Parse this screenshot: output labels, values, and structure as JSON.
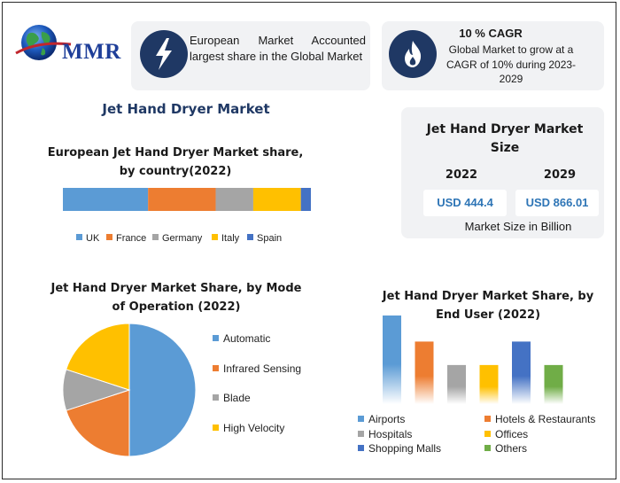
{
  "brand": {
    "name": "MMR"
  },
  "callouts": {
    "european": {
      "text": "European Market Accounted largest share in the Global Market",
      "icon": "lightning-icon"
    },
    "cagr": {
      "title": "10 % CAGR",
      "text": "Global Market to grow at a CAGR of 10% during 2023-2029",
      "icon": "flame-icon"
    }
  },
  "main_title": "Jet Hand Dryer Market",
  "market_size": {
    "title": "Jet Hand Dryer Market Size",
    "years": [
      "2022",
      "2029"
    ],
    "values": [
      "USD 444.4",
      "USD 866.01"
    ],
    "unit_note": "Market Size in Billion"
  },
  "colors": {
    "blue": "#5b9bd5",
    "orange": "#ed7d31",
    "gray": "#a5a5a5",
    "yellow": "#ffc000",
    "darkblue": "#4472c4",
    "green": "#70ad47",
    "navy": "#1f3864"
  },
  "chart_data": [
    {
      "id": "european",
      "type": "bar",
      "stacked": true,
      "orientation": "horizontal",
      "title": "European Jet Hand Dryer Market share, by country(2022)",
      "series": [
        {
          "name": "UK",
          "values": [
            34
          ]
        },
        {
          "name": "France",
          "values": [
            27
          ]
        },
        {
          "name": "Germany",
          "values": [
            15
          ]
        },
        {
          "name": "Italy",
          "values": [
            19
          ]
        },
        {
          "name": "Spain",
          "values": [
            4
          ]
        }
      ],
      "legend": "bottom"
    },
    {
      "id": "mode",
      "type": "pie",
      "title": "Jet Hand Dryer Market Share, by Mode of Operation (2022)",
      "categories": [
        "Automatic",
        "Infrared Sensing",
        "Blade",
        "High Velocity"
      ],
      "values": [
        50,
        20,
        10,
        20
      ],
      "legend": "right"
    },
    {
      "id": "enduser",
      "type": "bar",
      "title": "Jet Hand Dryer Market Share, by End User (2022)",
      "categories": [
        "Airports",
        "Hotels & Restaurants",
        "Hospitals",
        "Offices",
        "Shopping Malls",
        "Others"
      ],
      "values": [
        34,
        24,
        15,
        15,
        24,
        15
      ],
      "legend": "bottom"
    }
  ]
}
